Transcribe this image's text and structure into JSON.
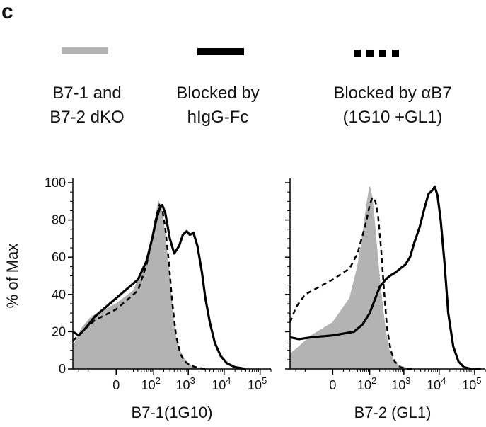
{
  "panel_letter": "c",
  "legend": [
    {
      "label_line1": "B7-1 and",
      "label_line2": "B7-2 dKO",
      "style": "filled-gray",
      "color": "#b3b3b3"
    },
    {
      "label_line1": "Blocked by",
      "label_line2": "hIgG-Fc",
      "style": "solid",
      "color": "#000000"
    },
    {
      "label_line1": "Blocked by αB7",
      "label_line2": "(1G10 +GL1)",
      "style": "dashed",
      "color": "#000000"
    }
  ],
  "chart_data": [
    {
      "type": "area",
      "title": "",
      "xlabel": "B7-1(1G10)",
      "ylabel": "% of Max",
      "xscale": "biexponential",
      "xlim": [
        -150,
        200000
      ],
      "ylim": [
        0,
        100
      ],
      "xticks": [
        {
          "value": 0,
          "base": "0",
          "exp": ""
        },
        {
          "value": 100,
          "base": "10",
          "exp": "2"
        },
        {
          "value": 1000,
          "base": "10",
          "exp": "3"
        },
        {
          "value": 10000,
          "base": "10",
          "exp": "4"
        },
        {
          "value": 100000,
          "base": "10",
          "exp": "5"
        }
      ],
      "yticks": [
        0,
        20,
        40,
        60,
        80,
        100
      ],
      "series": [
        {
          "style": "filled-gray",
          "x": [
            -150,
            -80,
            -40,
            0,
            20,
            50,
            80,
            110,
            140,
            170,
            200,
            250,
            320,
            400,
            500,
            650,
            800,
            1000,
            1300,
            2000,
            5000
          ],
          "y": [
            12,
            22,
            28,
            35,
            42,
            55,
            68,
            80,
            90,
            86,
            78,
            62,
            42,
            22,
            12,
            8,
            5,
            3,
            1,
            0,
            0
          ]
        },
        {
          "style": "solid",
          "x": [
            -150,
            -100,
            -60,
            -30,
            0,
            30,
            60,
            90,
            120,
            150,
            180,
            220,
            300,
            400,
            550,
            700,
            900,
            1100,
            1400,
            1800,
            2400,
            3000,
            4000,
            5500,
            8000,
            12000,
            20000,
            40000
          ],
          "y": [
            20,
            18,
            22,
            28,
            38,
            48,
            58,
            70,
            80,
            86,
            88,
            84,
            70,
            62,
            66,
            72,
            74,
            72,
            73,
            66,
            52,
            38,
            25,
            14,
            7,
            3,
            1,
            0
          ]
        },
        {
          "style": "dashed",
          "x": [
            -150,
            -80,
            -30,
            0,
            30,
            60,
            90,
            120,
            150,
            180,
            220,
            280,
            350,
            450,
            600,
            800,
            1100,
            1600,
            3000
          ],
          "y": [
            15,
            20,
            26,
            32,
            42,
            56,
            70,
            82,
            88,
            86,
            76,
            58,
            36,
            18,
            8,
            4,
            2,
            1,
            0
          ]
        }
      ]
    },
    {
      "type": "area",
      "title": "",
      "xlabel": "B7-2 (GL1)",
      "ylabel": "",
      "xscale": "biexponential",
      "xlim": [
        -150,
        200000
      ],
      "ylim": [
        0,
        100
      ],
      "xticks": [
        {
          "value": 0,
          "base": "0",
          "exp": ""
        },
        {
          "value": 100,
          "base": "10",
          "exp": "2"
        },
        {
          "value": 1000,
          "base": "10",
          "exp": "3"
        },
        {
          "value": 10000,
          "base": "10",
          "exp": "4"
        },
        {
          "value": 100000,
          "base": "10",
          "exp": "5"
        }
      ],
      "yticks": [
        0,
        20,
        40,
        60,
        80,
        100
      ],
      "series": [
        {
          "style": "filled-gray",
          "x": [
            -150,
            -80,
            -30,
            0,
            20,
            40,
            60,
            80,
            100,
            120,
            140,
            170,
            200,
            250,
            300,
            380,
            500,
            700,
            1000,
            1500,
            3000
          ],
          "y": [
            8,
            12,
            18,
            25,
            38,
            55,
            72,
            88,
            98,
            92,
            80,
            62,
            48,
            32,
            20,
            10,
            5,
            2,
            1,
            0,
            0
          ]
        },
        {
          "style": "solid",
          "x": [
            -150,
            -80,
            -30,
            0,
            30,
            60,
            100,
            150,
            200,
            300,
            400,
            600,
            800,
            1100,
            1500,
            2000,
            2800,
            3800,
            5000,
            6500,
            7500,
            9000,
            11000,
            14000,
            18000,
            25000,
            35000,
            50000,
            80000,
            150000
          ],
          "y": [
            17,
            16,
            17,
            18,
            20,
            24,
            30,
            38,
            44,
            48,
            50,
            52,
            54,
            56,
            60,
            68,
            76,
            86,
            94,
            96,
            98,
            93,
            80,
            58,
            30,
            12,
            4,
            1,
            0,
            0
          ]
        },
        {
          "style": "dashed",
          "x": [
            -150,
            -100,
            -50,
            0,
            20,
            40,
            60,
            80,
            100,
            120,
            150,
            180,
            220,
            270,
            330,
            420,
            550,
            800,
            1200,
            2000
          ],
          "y": [
            25,
            33,
            40,
            48,
            54,
            62,
            72,
            80,
            88,
            92,
            90,
            82,
            65,
            42,
            22,
            10,
            4,
            1,
            0,
            0
          ]
        }
      ]
    }
  ]
}
